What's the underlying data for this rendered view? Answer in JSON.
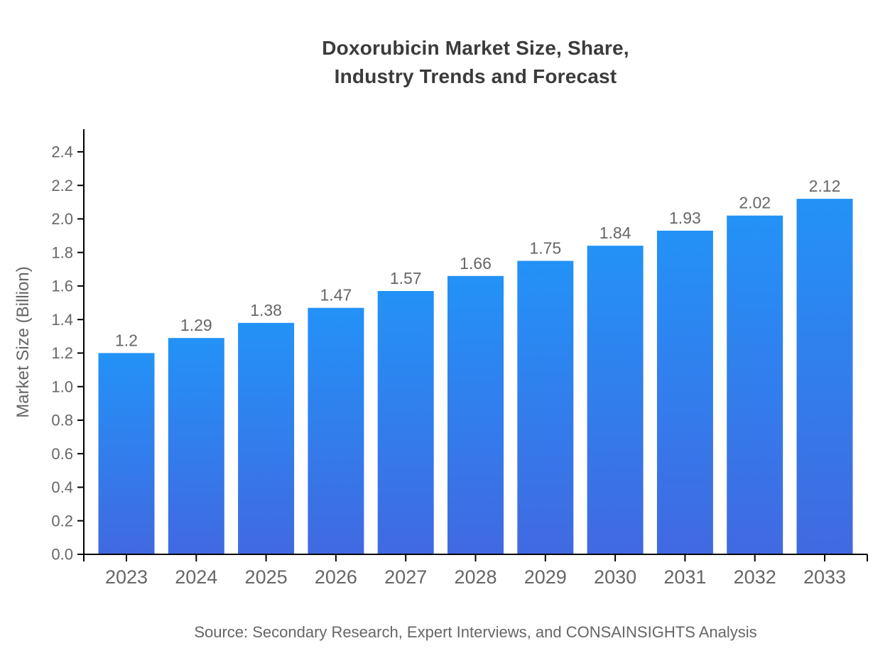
{
  "page": {
    "background": "#ffffff"
  },
  "chart_data": {
    "type": "bar",
    "title": "Doxorubicin Market Size, Share, Industry Trends and Forecast",
    "title_lines": [
      "Doxorubicin Market Size, Share,",
      "Industry Trends and Forecast"
    ],
    "categories": [
      "2023",
      "2024",
      "2025",
      "2026",
      "2027",
      "2028",
      "2029",
      "2030",
      "2031",
      "2032",
      "2033"
    ],
    "values": [
      1.2,
      1.29,
      1.38,
      1.47,
      1.57,
      1.66,
      1.75,
      1.84,
      1.93,
      2.02,
      2.12
    ],
    "value_labels": [
      "1.2",
      "1.29",
      "1.38",
      "1.47",
      "1.57",
      "1.66",
      "1.75",
      "1.84",
      "1.93",
      "2.02",
      "2.12"
    ],
    "xlabel": "",
    "ylabel": "Market Size (Billion)",
    "ylim": [
      0,
      2.535
    ],
    "ytick_labels": [
      "0.0",
      "0.2",
      "0.4",
      "0.6",
      "0.8",
      "1.0",
      "1.2",
      "1.4",
      "1.6",
      "1.8",
      "2.0",
      "2.2",
      "2.4"
    ],
    "grid": false,
    "legend_position": "none",
    "source": "Source: Secondary Research, Expert Interviews, and CONSAINSIGHTS Analysis",
    "colors": {
      "bar_gradient_top": "#2392f7",
      "bar_gradient_bottom": "#4169e1",
      "axis_line": "#000000",
      "tick_text": "#666666",
      "value_label_text": "#666666",
      "title_text": "#3b3b3b",
      "source_text": "#666666"
    }
  }
}
